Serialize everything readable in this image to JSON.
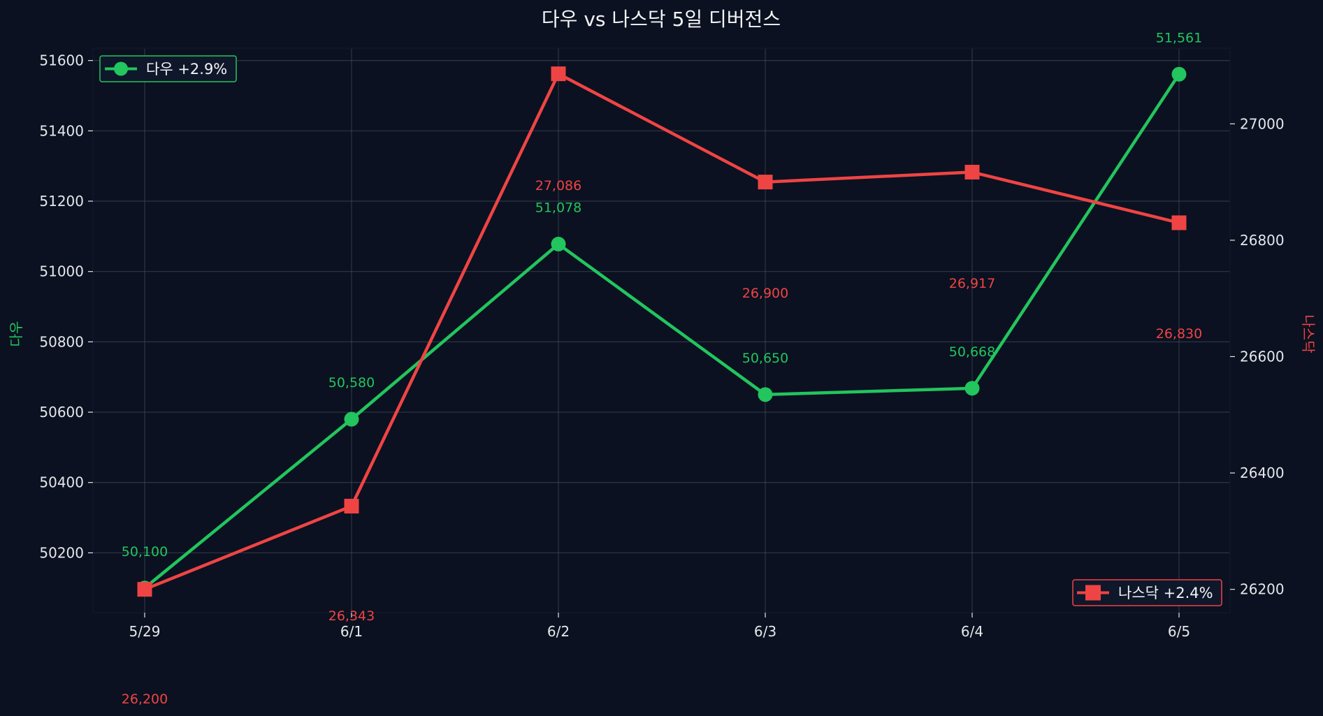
{
  "chart_data": {
    "type": "line",
    "title": "다우 vs 나스닥 5일 디버전스",
    "categories": [
      "5/29",
      "6/1",
      "6/2",
      "6/3",
      "6/4",
      "6/5"
    ],
    "series": [
      {
        "name": "다우",
        "axis": "left",
        "legend": "다우 +2.9%",
        "color": "#22c55e",
        "marker": "circle",
        "values": [
          50100,
          50580,
          51078,
          50650,
          50668,
          51561
        ],
        "labels": [
          "50,100",
          "50,580",
          "51,078",
          "50,650",
          "50,668",
          "51,561"
        ]
      },
      {
        "name": "나스닥",
        "axis": "right",
        "legend": "나스닥 +2.4%",
        "color": "#ef4444",
        "marker": "square",
        "values": [
          26200,
          26343,
          27086,
          26900,
          26917,
          26830
        ],
        "labels": [
          "26,200",
          "26,343",
          "27,086",
          "26,900",
          "26,917",
          "26,830"
        ]
      }
    ],
    "ylabel_left": "다우",
    "ylabel_right": "나스닥",
    "ylim_left": [
      50030,
      51635
    ],
    "ylim_right": [
      26160,
      27130
    ],
    "yticks_left": [
      50200,
      50400,
      50600,
      50800,
      51000,
      51200,
      51400,
      51600
    ],
    "yticks_right": [
      26200,
      26400,
      26600,
      26800,
      27000
    ],
    "grid": true,
    "legend_left_placement": "top-left",
    "legend_right_placement": "bottom-right",
    "colors": {
      "background": "#0b1120",
      "text": "#e5e7eb",
      "grid": "#4b5563"
    }
  }
}
